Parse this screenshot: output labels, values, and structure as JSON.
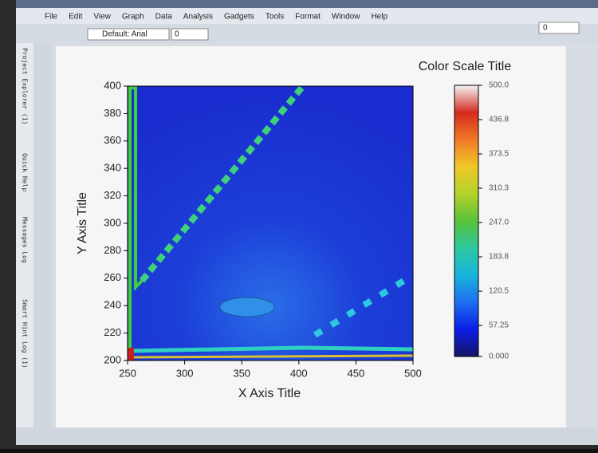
{
  "menu": [
    "File",
    "Edit",
    "View",
    "Graph",
    "Data",
    "Analysis",
    "Gadgets",
    "Tools",
    "Format",
    "Window",
    "Help"
  ],
  "toolbar": {
    "font": "Default: Arial",
    "font_size": "0",
    "line_width": "0"
  },
  "side_panels": [
    "Project Explorer (1)",
    "Quick Help",
    "Messages Log",
    "Smart Hint Log (1)"
  ],
  "chart_data": {
    "type": "contour",
    "x_label": "X Axis Title",
    "y_label": "Y Axis Title",
    "colorbar_title": "Color Scale Title",
    "xlim": [
      250,
      500
    ],
    "xticks": [
      250,
      300,
      350,
      400,
      450,
      500
    ],
    "ylim": [
      200,
      400
    ],
    "yticks": [
      200,
      220,
      240,
      260,
      280,
      300,
      320,
      340,
      360,
      380,
      400
    ],
    "zlim": [
      0,
      500
    ],
    "zticks": [
      {
        "value": 0,
        "label": "0.000"
      },
      {
        "value": 57.25,
        "label": "57.25"
      },
      {
        "value": 120.5,
        "label": "120.5"
      },
      {
        "value": 183.8,
        "label": "183.8"
      },
      {
        "value": 247.0,
        "label": "247.0"
      },
      {
        "value": 310.3,
        "label": "310.3"
      },
      {
        "value": 373.5,
        "label": "373.5"
      },
      {
        "value": 436.8,
        "label": "436.8"
      },
      {
        "value": 500.0,
        "label": "500.0"
      }
    ],
    "colormap": [
      "#141466",
      "#0a1ee6",
      "#1e6ef0",
      "#18b4dc",
      "#2ec8a0",
      "#58c23a",
      "#b4d22a",
      "#f0c828",
      "#f07828",
      "#d42a1e",
      "#f4f4f4"
    ]
  }
}
